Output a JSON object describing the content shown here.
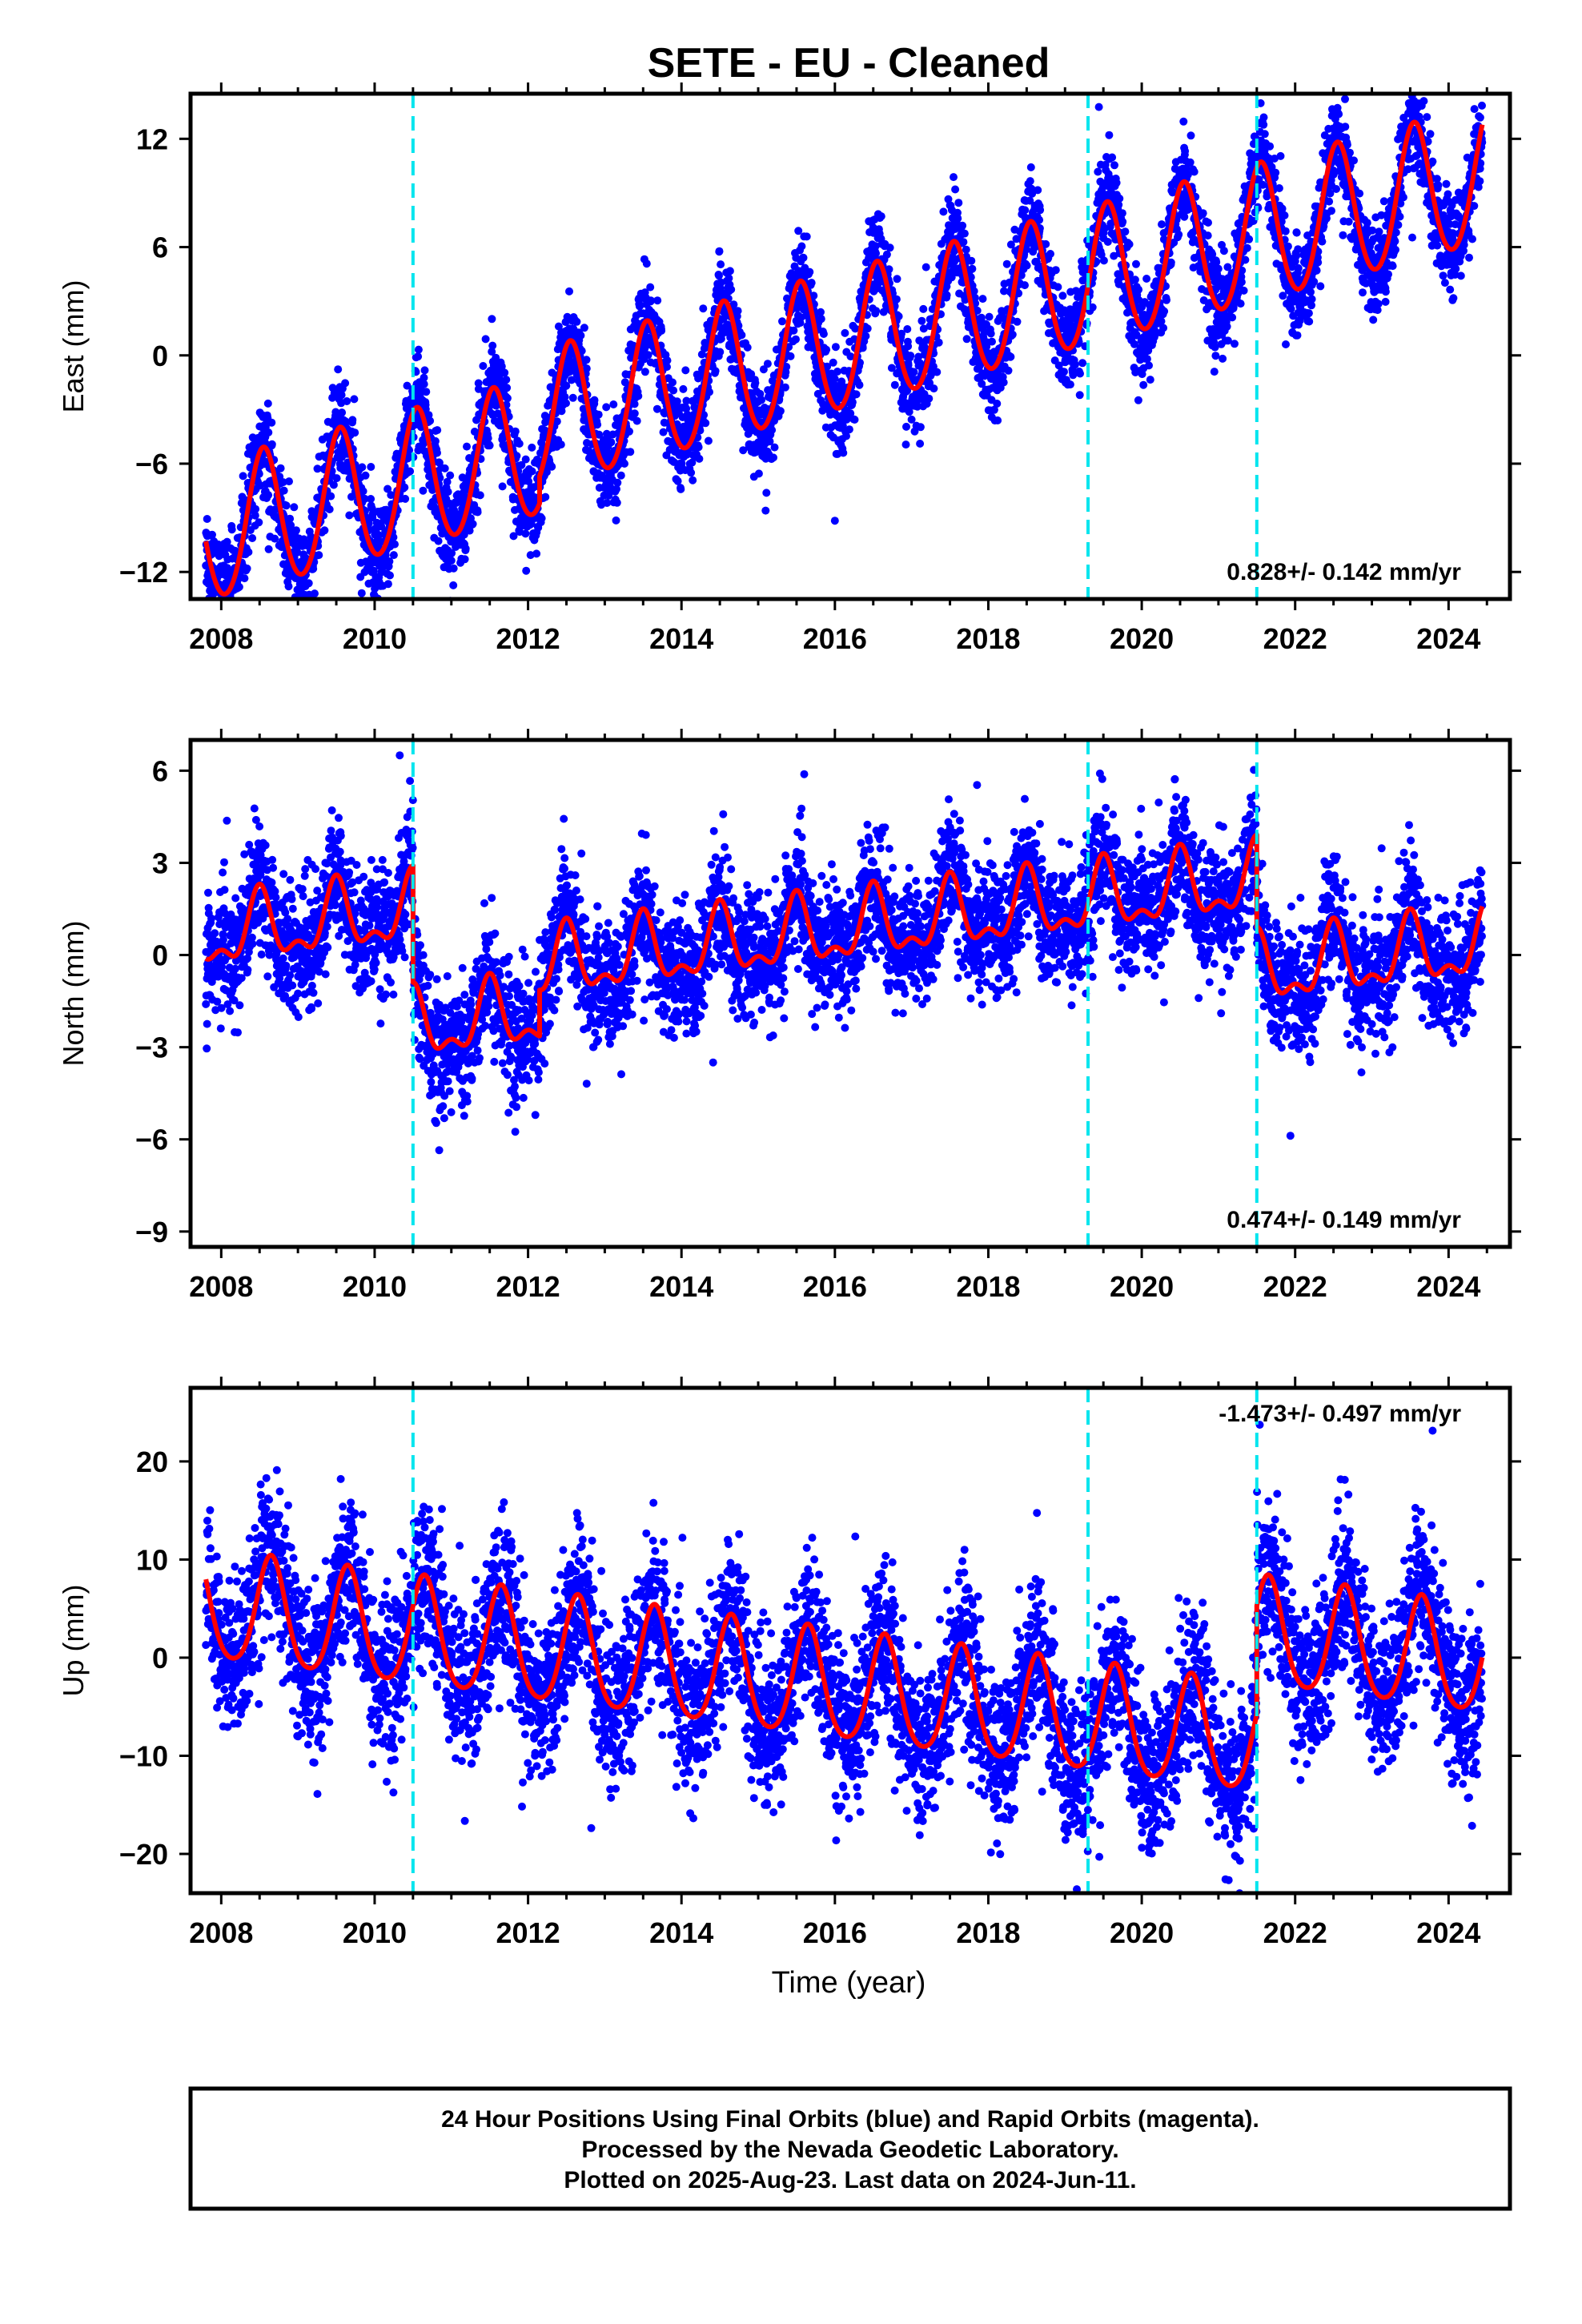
{
  "title": "SETE  - EU - Cleaned",
  "x_axis_label": "Time (year)",
  "footer_lines": [
    "24 Hour Positions Using Final Orbits (blue) and Rapid Orbits (magenta).",
    "Processed by the Nevada Geodetic Laboratory.",
    "Plotted on 2025-Aug-23. Last data on 2024-Jun-11."
  ],
  "colors": {
    "data_points": "#0000ff",
    "model_fit": "#ff0000",
    "event_lines": "#00e5ee",
    "frame": "#000000"
  },
  "chart_data": [
    {
      "type": "scatter",
      "component": "East",
      "ylabel": "East (mm)",
      "rate_label": "0.828+/- 0.142 mm/yr",
      "xlim": [
        2007.6,
        2024.8
      ],
      "ylim": [
        -13.5,
        14.5
      ],
      "x_ticks": [
        2008,
        2010,
        2012,
        2014,
        2016,
        2018,
        2020,
        2022,
        2024
      ],
      "y_ticks": [
        12,
        6,
        0,
        -6,
        -12
      ],
      "data_range": [
        2007.8,
        2024.44
      ],
      "event_lines_x": [
        2010.5,
        2019.3,
        2021.5
      ],
      "model": {
        "offset": -10.0,
        "rate_mm_per_yr": 1.1,
        "annual_amp": 3.8,
        "annual_peak": 0.55,
        "semiannual_amp": 0.3,
        "steps": [
          {
            "x": 2012.15,
            "dy": 1.5
          }
        ]
      },
      "scatter_sd": 1.3
    },
    {
      "type": "scatter",
      "component": "North",
      "ylabel": "North (mm)",
      "rate_label": "0.474+/- 0.149 mm/yr",
      "xlim": [
        2007.6,
        2024.8
      ],
      "ylim": [
        -9.5,
        7.0
      ],
      "x_ticks": [
        2008,
        2010,
        2012,
        2014,
        2016,
        2018,
        2020,
        2022,
        2024
      ],
      "y_ticks": [
        6,
        3,
        0,
        -3,
        -6,
        -9
      ],
      "data_range": [
        2007.8,
        2024.44
      ],
      "event_lines_x": [
        2010.5,
        2019.3,
        2021.5
      ],
      "model": {
        "offset": 0.6,
        "rate_mm_per_yr": 0.3,
        "annual_amp": 1.0,
        "annual_peak": 0.5,
        "semiannual_amp": 0.5,
        "steps": [
          {
            "x": 2010.5,
            "dy": -3.8
          },
          {
            "x": 2012.15,
            "dy": 1.5
          },
          {
            "x": 2021.5,
            "dy": -3.0
          }
        ]
      },
      "scatter_sd": 1.0
    },
    {
      "type": "scatter",
      "component": "Up",
      "ylabel": "Up (mm)",
      "rate_label": "-1.473+/- 0.497 mm/yr",
      "xlim": [
        2007.6,
        2024.8
      ],
      "ylim": [
        -24.0,
        27.5
      ],
      "x_ticks": [
        2008,
        2010,
        2012,
        2014,
        2016,
        2018,
        2020,
        2022,
        2024
      ],
      "y_ticks": [
        20,
        10,
        0,
        -10,
        -20
      ],
      "data_range": [
        2007.8,
        2024.44
      ],
      "event_lines_x": [
        2010.5,
        2019.3,
        2021.5
      ],
      "model": {
        "offset": 5.0,
        "rate_mm_per_yr": -1.0,
        "annual_amp": 5.5,
        "annual_peak": 0.65,
        "semiannual_amp": 0.8,
        "steps": [
          {
            "x": 2021.5,
            "dy": 11.0
          }
        ]
      },
      "scatter_sd": 4.0
    }
  ]
}
